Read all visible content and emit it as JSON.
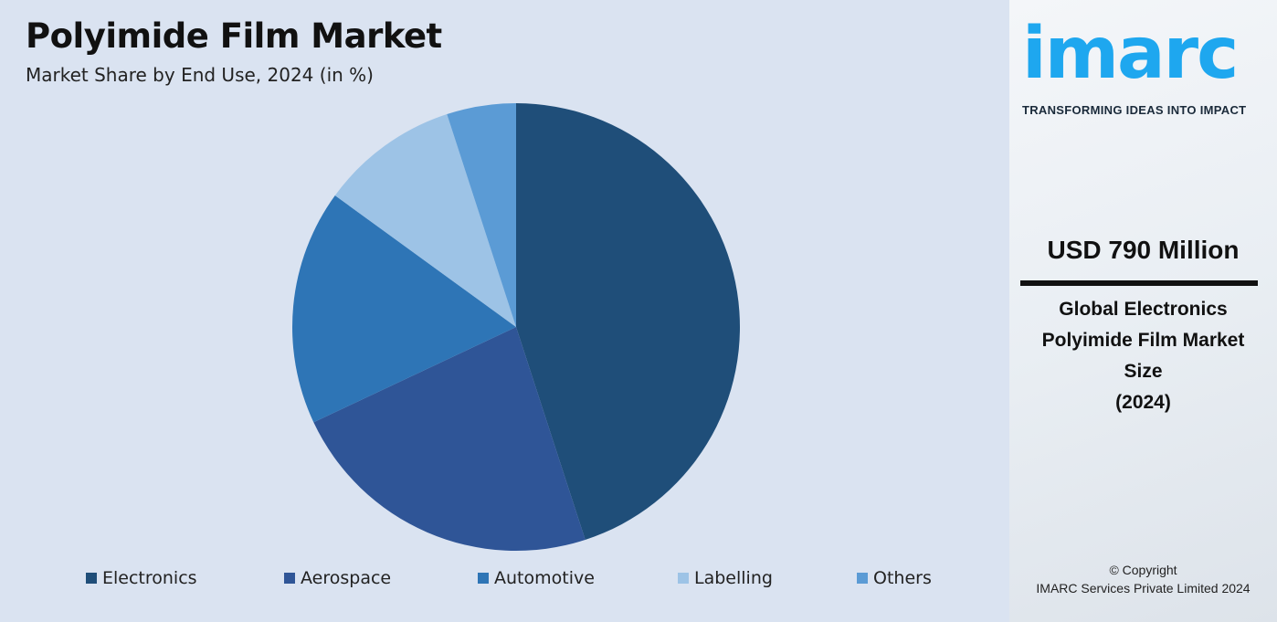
{
  "chart_data": {
    "type": "pie",
    "title": "Polyimide Film Market",
    "subtitle": "Market Share by End Use, 2024 (in %)",
    "categories": [
      "Electronics",
      "Aerospace",
      "Automotive",
      "Labelling",
      "Others"
    ],
    "values": [
      45,
      23,
      17,
      10,
      5
    ],
    "colors": [
      "#1f4e79",
      "#2f5597",
      "#2e75b6",
      "#9dc3e6",
      "#5b9bd5"
    ],
    "legend_position": "bottom"
  },
  "sidebar": {
    "logo": "imarc",
    "tagline": "TRANSFORMING IDEAS INTO IMPACT",
    "value": "USD 790 Million",
    "description": [
      "Global Electronics",
      "Polyimide Film Market",
      "Size",
      "(2024)"
    ],
    "copyright": "© Copyright",
    "company": "IMARC Services Private Limited 2024"
  }
}
